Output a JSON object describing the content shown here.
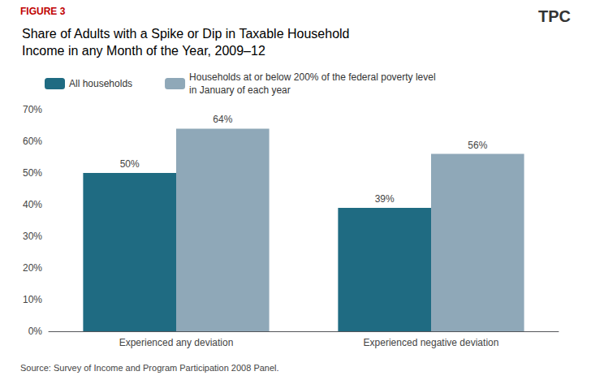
{
  "chart_data": {
    "type": "bar",
    "title": "Share of Adults with a Spike or Dip in Taxable Household\nIncome in any Month of the Year, 2009–12",
    "categories": [
      "Experienced any deviation",
      "Experienced negative deviation"
    ],
    "series": [
      {
        "name": "All households",
        "color": "#1f6b82",
        "values": [
          0.5,
          0.39
        ],
        "value_labels": [
          "50%",
          "39%"
        ]
      },
      {
        "name": "Households at or below 200% of the federal poverty level\nin January of each year",
        "color": "#8fa8b8",
        "values": [
          0.64,
          0.56
        ],
        "value_labels": [
          "64%",
          "56%"
        ]
      }
    ],
    "ylim": [
      0,
      0.7
    ],
    "yticks": [
      {
        "value": 0.0,
        "label": "0%"
      },
      {
        "value": 0.1,
        "label": "10%"
      },
      {
        "value": 0.2,
        "label": "20%"
      },
      {
        "value": 0.3,
        "label": "30%"
      },
      {
        "value": 0.4,
        "label": "40%"
      },
      {
        "value": 0.5,
        "label": "50%"
      },
      {
        "value": 0.6,
        "label": "60%"
      },
      {
        "value": 0.7,
        "label": "70%"
      }
    ],
    "grid": false,
    "data_labels": true,
    "annotations": [
      {
        "text": "FIGURE 3",
        "color": "#c00000"
      },
      {
        "text": "Source: Survey of Income and Program Participation 2008 Panel."
      },
      {
        "text": "TPC"
      }
    ]
  }
}
